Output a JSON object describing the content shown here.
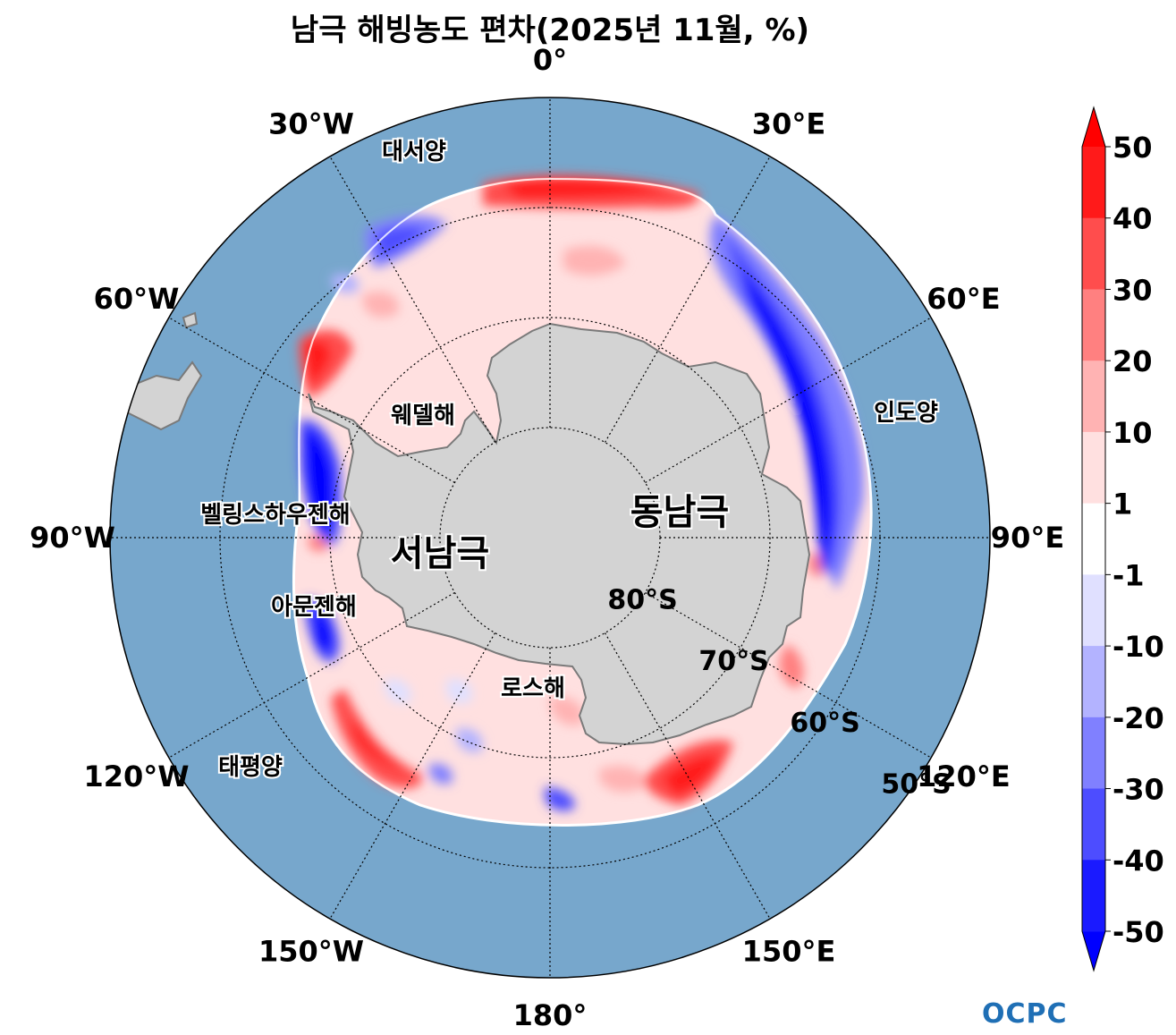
{
  "title": "남극 해빙농도 편차(2025년 11월, %)",
  "longitude_labels": [
    {
      "text": "0°",
      "lon": 0
    },
    {
      "text": "30°E",
      "lon": 30
    },
    {
      "text": "60°E",
      "lon": 60
    },
    {
      "text": "90°E",
      "lon": 90
    },
    {
      "text": "120°E",
      "lon": 120
    },
    {
      "text": "150°E",
      "lon": 150
    },
    {
      "text": "180°",
      "lon": 180
    },
    {
      "text": "150°W",
      "lon": -150
    },
    {
      "text": "120°W",
      "lon": -120
    },
    {
      "text": "90°W",
      "lon": -90
    },
    {
      "text": "60°W",
      "lon": -60
    },
    {
      "text": "30°W",
      "lon": -30
    }
  ],
  "latitude_labels": [
    {
      "text": "80°S",
      "lat": -80
    },
    {
      "text": "70°S",
      "lat": -70
    },
    {
      "text": "60°S",
      "lat": -60
    },
    {
      "text": "50°S",
      "lat": -50
    }
  ],
  "regions": {
    "atlantic": "대서양",
    "indian": "인도양",
    "pacific": "태평양",
    "weddell": "웨델해",
    "bellingshausen": "벨링스하우젠해",
    "amundsen": "아문젠해",
    "ross": "로스해",
    "west_antarctica": "서남극",
    "east_antarctica": "동남극"
  },
  "colorbar": {
    "ticks": [
      "50",
      "40",
      "30",
      "20",
      "10",
      "1",
      "-1",
      "-10",
      "-20",
      "-30",
      "-40",
      "-50"
    ],
    "colors": [
      "#ff1a1a",
      "#ff4d4d",
      "#ff8080",
      "#ffb3b3",
      "#ffe0e0",
      "#ffffff",
      "#e0e0ff",
      "#b3b3ff",
      "#8080ff",
      "#4d4dff",
      "#1a1aff"
    ],
    "extend_max_color": "#ff0000",
    "extend_min_color": "#0000ff"
  },
  "colors": {
    "ocean": "#77a7cc",
    "land": "#d3d3d3",
    "coast": "#7a7a7a"
  },
  "logo": "OCPC"
}
